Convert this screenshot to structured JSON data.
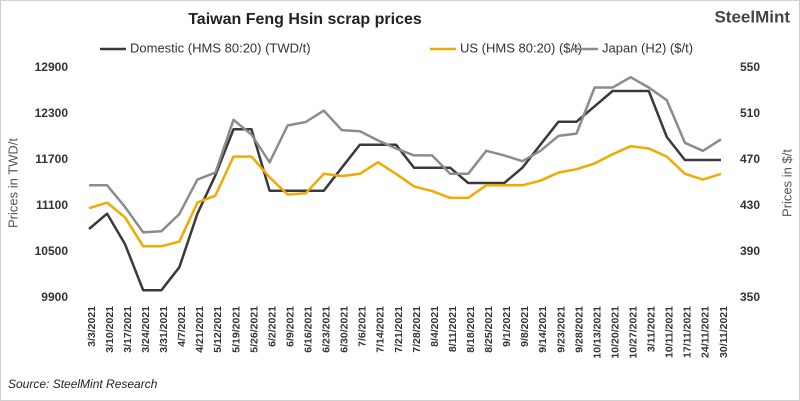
{
  "chart_data": {
    "type": "line",
    "title": "Taiwan Feng Hsin scrap prices",
    "logo": "SteelMint",
    "source": "Source: SteelMint Research",
    "y_label": "Prices in TWD/t",
    "y2_label": "Prices in $/t",
    "categories": [
      "3/3/2021",
      "3/10/2021",
      "3/17/2021",
      "3/24/2021",
      "3/31/2021",
      "4/7/2021",
      "4/21/2021",
      "5/12/2021",
      "5/19/2021",
      "5/26/2021",
      "6/2/2021",
      "6/9/2021",
      "6/16/2021",
      "6/23/2021",
      "6/30/2021",
      "7/6/2021",
      "7/14/2021",
      "7/21/2021",
      "7/28/2021",
      "8/4/2021",
      "8/11/2021",
      "8/18/2021",
      "8/25/2021",
      "9/1/2021",
      "9/8/2021",
      "9/14/2021",
      "9/23/2021",
      "9/28/2021",
      "10/13/2021",
      "10/20/2021",
      "10/27/2021",
      "3/11/2021",
      "10/11/2021",
      "17/11/2021",
      "24/11/2021",
      "30/11/2021"
    ],
    "series": [
      {
        "name": "Domestic (HMS 80:20) (TWD/t)",
        "color": "#3a3a3a",
        "axis": "y",
        "values": [
          10800,
          11000,
          10600,
          10000,
          10000,
          10300,
          11000,
          11500,
          12100,
          12100,
          11300,
          11300,
          11300,
          11300,
          11600,
          11900,
          11900,
          11900,
          11600,
          11600,
          11600,
          11400,
          11400,
          11400,
          11600,
          11900,
          12200,
          12200,
          12400,
          12600,
          12600,
          12600,
          12000,
          11700,
          11700,
          11700
        ]
      },
      {
        "name": "US (HMS 80:20) ($/t)",
        "color": "#f2a900",
        "axis": "y2",
        "values": [
          428,
          433,
          420,
          395,
          395,
          399,
          433,
          439,
          473,
          473,
          455,
          440,
          441,
          458,
          456,
          458,
          468,
          458,
          447,
          443,
          437,
          437,
          448,
          448,
          448,
          452,
          459,
          462,
          467,
          475,
          482,
          480,
          473,
          458,
          453,
          458
        ]
      },
      {
        "name": "Japan (H2) ($/t)",
        "color": "#8c8c8c",
        "axis": "y2",
        "values": [
          448,
          448,
          429,
          407,
          408,
          423,
          453,
          459,
          505,
          492,
          468,
          500,
          503,
          513,
          496,
          495,
          487,
          480,
          474,
          474,
          458,
          458,
          478,
          474,
          469,
          478,
          491,
          493,
          533,
          533,
          542,
          533,
          522,
          485,
          478,
          488
        ]
      }
    ],
    "ylim": [
      9900,
      12900
    ],
    "yticks": [
      9900,
      10500,
      11100,
      11700,
      12300,
      12900
    ],
    "y2lim": [
      350,
      550
    ],
    "y2ticks": [
      350,
      390,
      430,
      470,
      510,
      550
    ],
    "grid": false
  }
}
